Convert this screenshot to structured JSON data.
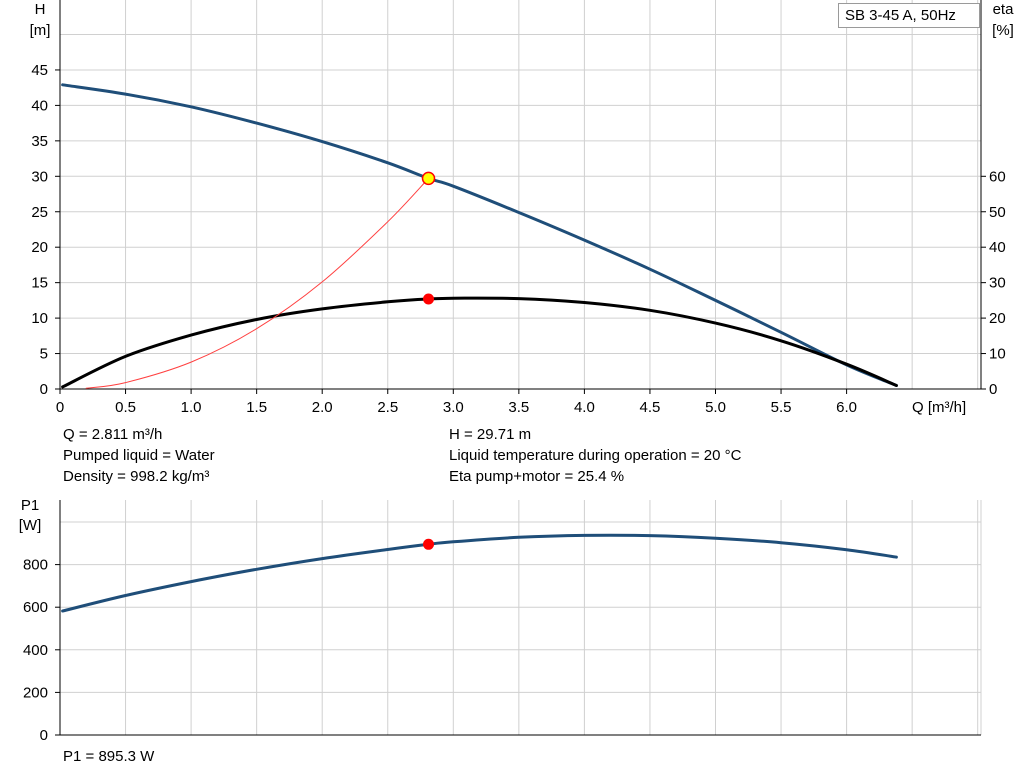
{
  "chart_data": [
    {
      "type": "line",
      "title": "SB 3-45 A, 50Hz",
      "xlabel": "Q [m³/h]",
      "ylabel_left": "H\n[m]",
      "ylabel_right": "eta\n[%]",
      "xlim": [
        0,
        7.0
      ],
      "ylim_left": [
        0,
        49
      ],
      "ylim_right": [
        0,
        60
      ],
      "right_axis_ticks": [
        0,
        10,
        20,
        30,
        40,
        50,
        60
      ],
      "x_ticks": [
        "0",
        "0.5",
        "1.0",
        "1.5",
        "2.0",
        "2.5",
        "3.0",
        "3.5",
        "4.0",
        "4.5",
        "5.0",
        "5.5",
        "6.0"
      ],
      "y_ticks_left": [
        "0",
        "5",
        "10",
        "15",
        "20",
        "25",
        "30",
        "35",
        "40",
        "45"
      ],
      "grid": true,
      "series": [
        {
          "axis": "left",
          "color": "#1f4e79",
          "x": [
            0.02,
            0.5,
            1.0,
            1.5,
            2.0,
            2.5,
            2.811,
            3.0,
            3.5,
            4.0,
            4.5,
            5.0,
            5.5,
            6.0,
            6.38
          ],
          "y": [
            42.9,
            41.6,
            39.8,
            37.5,
            34.9,
            31.9,
            29.71,
            28.6,
            24.9,
            21.0,
            16.9,
            12.5,
            8.0,
            3.4,
            0.5
          ]
        },
        {
          "axis": "right",
          "color": "#000000",
          "x": [
            0.02,
            0.5,
            1.0,
            1.5,
            2.0,
            2.5,
            2.811,
            3.0,
            3.5,
            4.0,
            4.5,
            5.0,
            5.5,
            6.0,
            6.38
          ],
          "y": [
            0.6,
            9.2,
            15.2,
            19.6,
            22.6,
            24.6,
            25.4,
            25.6,
            25.5,
            24.4,
            22.2,
            18.6,
            13.6,
            7.0,
            1.0
          ]
        },
        {
          "axis": "left",
          "color": "#ff4040",
          "x": [
            0.2,
            0.5,
            1.0,
            1.5,
            2.0,
            2.5,
            2.811
          ],
          "y": [
            0.1,
            0.9,
            3.8,
            8.5,
            15.1,
            23.6,
            29.71
          ]
        }
      ],
      "markers": [
        {
          "x": 2.811,
          "y": 29.71,
          "axis": "left",
          "fill": "#ffff00",
          "stroke": "#ff0000"
        },
        {
          "x": 2.811,
          "y": 25.4,
          "axis": "right",
          "fill": "#ff0000",
          "stroke": "#ff0000"
        }
      ]
    },
    {
      "type": "line",
      "ylabel": "P1\n[W]",
      "xlim": [
        0,
        7.0
      ],
      "ylim": [
        0,
        1000
      ],
      "y_ticks": [
        "0",
        "200",
        "400",
        "600",
        "800"
      ],
      "grid": true,
      "series": [
        {
          "color": "#1f4e79",
          "x": [
            0.02,
            0.5,
            1.0,
            1.5,
            2.0,
            2.5,
            2.811,
            3.0,
            3.5,
            4.0,
            4.5,
            5.0,
            5.5,
            6.0,
            6.38
          ],
          "y": [
            582,
            655,
            720,
            778,
            828,
            871,
            895.3,
            907,
            928,
            937,
            936,
            924,
            903,
            870,
            835
          ]
        }
      ],
      "markers": [
        {
          "x": 2.811,
          "y": 895.3,
          "fill": "#ff0000",
          "stroke": "#ff0000"
        }
      ]
    }
  ],
  "info": {
    "q": "Q = 2.811 m³/h",
    "pumped_liquid": "Pumped liquid = Water",
    "density": "Density = 998.2 kg/m³",
    "h": "H = 29.71 m",
    "liquid_temp": "Liquid temperature during operation = 20 °C",
    "eta": "Eta pump+motor = 25.4 %",
    "p1": "P1 = 895.3 W"
  }
}
